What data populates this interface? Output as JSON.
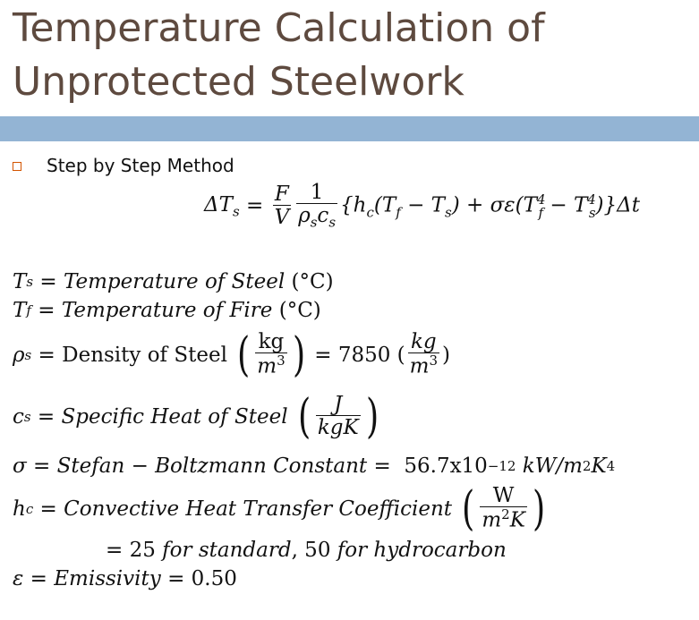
{
  "title": {
    "line1": "Temperature Calculation of",
    "line2": "Unprotected Steelwork"
  },
  "bullet": {
    "text": "Step by Step Method"
  },
  "main_equation": {
    "lhs": "ΔT",
    "lhs_sub": "s",
    "frac1_num": "F",
    "frac1_den": "V",
    "frac2_num": "1",
    "frac2_den": "ρ",
    "frac2_den_sub1": "s",
    "frac2_den_c": "c",
    "frac2_den_sub2": "s",
    "body_open": "{h",
    "hc_sub": "c",
    "paren_open": "(T",
    "tf_sub": "f",
    "minus_ts": " − T",
    "ts_sub": "s",
    "paren_close": ")",
    "plus_sigma": " + σε(T",
    "tf4_sub": "f",
    "tf4_sup": "4",
    "minus_ts4": " − T",
    "ts4_sub": "s",
    "ts4_sup": "4",
    "body_close": ")}Δt"
  },
  "definitions": {
    "ts": {
      "sym": "T",
      "sub": "s",
      "eq": " = ",
      "text": "Temperature of Steel",
      "unit": " (°C)"
    },
    "tf": {
      "sym": "T",
      "sub": "f",
      "eq": " = ",
      "text": "Temperature of Fire",
      "unit": " (°C)"
    },
    "rho": {
      "sym": "ρ",
      "sub": "s",
      "eq": " = ",
      "text": "Density of Steel",
      "unit_num": "kg",
      "unit_den": "m",
      "unit_den_sup": "3",
      "value": " = 7850 (",
      "val_num": "kg",
      "val_den": "m",
      "val_den_sup": "3",
      "val_close": ")"
    },
    "cs": {
      "sym": "c",
      "sub": "s",
      "eq": " = ",
      "text": "Specific Heat of Steel",
      "unit_num": "J",
      "unit_den": "kgK"
    },
    "sigma": {
      "sym": "σ",
      "eq": " = ",
      "text": "Stefan − Boltzmann Constant",
      "value": " =  56.7x10",
      "exp": "−12",
      "unit": " kW/m",
      "unit_sup1": "2",
      "unit_k": "K",
      "unit_sup2": "4"
    },
    "hc": {
      "sym": "h",
      "sub": "c",
      "eq": " = ",
      "text": "Convective Heat Transfer Coefficient",
      "unit_num": "W",
      "unit_den": "m",
      "unit_den_sup": "2",
      "unit_den_k": "K"
    },
    "hc_values": {
      "eq": "= 25 ",
      "text1": "for standard",
      "mid": ", 50 ",
      "text2": "for hydrocarbon"
    },
    "emissivity": {
      "sym": "ε",
      "eq": " = ",
      "text": "Emissivity",
      "value": " = 0.50"
    }
  }
}
